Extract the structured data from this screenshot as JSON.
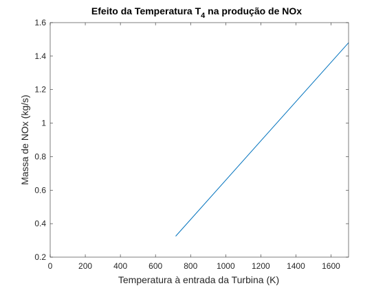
{
  "chart_data": {
    "type": "line",
    "title_parts": {
      "prefix": "Efeito da Temperatura T",
      "subscript": "4",
      "suffix": " na produção de NOx"
    },
    "xlabel": "Temperatura à entrada da Turbina (K)",
    "ylabel": "Massa de NOx (kg/s)",
    "xlim": [
      0,
      1700
    ],
    "ylim": [
      0.2,
      1.6
    ],
    "xticks": [
      0,
      200,
      400,
      600,
      800,
      1000,
      1200,
      1400,
      1600
    ],
    "yticks": [
      0.2,
      0.4,
      0.6,
      0.8,
      1,
      1.2,
      1.4,
      1.6
    ],
    "xtick_labels": [
      "0",
      "200",
      "400",
      "600",
      "800",
      "1000",
      "1200",
      "1400",
      "1600"
    ],
    "ytick_labels": [
      "0.2",
      "0.4",
      "0.6",
      "0.8",
      "1",
      "1.2",
      "1.4",
      "1.6"
    ],
    "grid": false,
    "series": [
      {
        "x": [
          715,
          1700
        ],
        "y": [
          0.325,
          1.48
        ],
        "color": "#0072BD"
      }
    ]
  }
}
